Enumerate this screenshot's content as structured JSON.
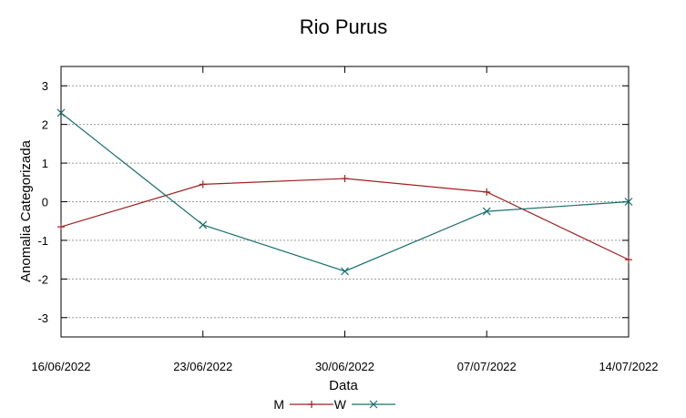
{
  "chart_data": {
    "type": "line",
    "title": "Rio Purus",
    "xlabel": "Data",
    "ylabel": "Anomalia Categorizada",
    "categories": [
      "16/06/2022",
      "23/06/2022",
      "30/06/2022",
      "07/07/2022",
      "14/07/2022"
    ],
    "yticks": [
      "3",
      "2",
      "1",
      "0",
      "-1",
      "-2",
      "-3"
    ],
    "ylim": [
      -3.5,
      3.5
    ],
    "grid": "horizontal dashed",
    "legend_position": "bottom-center",
    "series": [
      {
        "name": "M",
        "marker": "plus",
        "color": "#a0201f",
        "values": [
          -0.65,
          0.45,
          0.6,
          0.25,
          -1.5
        ]
      },
      {
        "name": "W",
        "marker": "cross",
        "color": "#16706c",
        "values": [
          2.3,
          -0.6,
          -1.8,
          -0.25,
          0.0
        ]
      }
    ]
  }
}
